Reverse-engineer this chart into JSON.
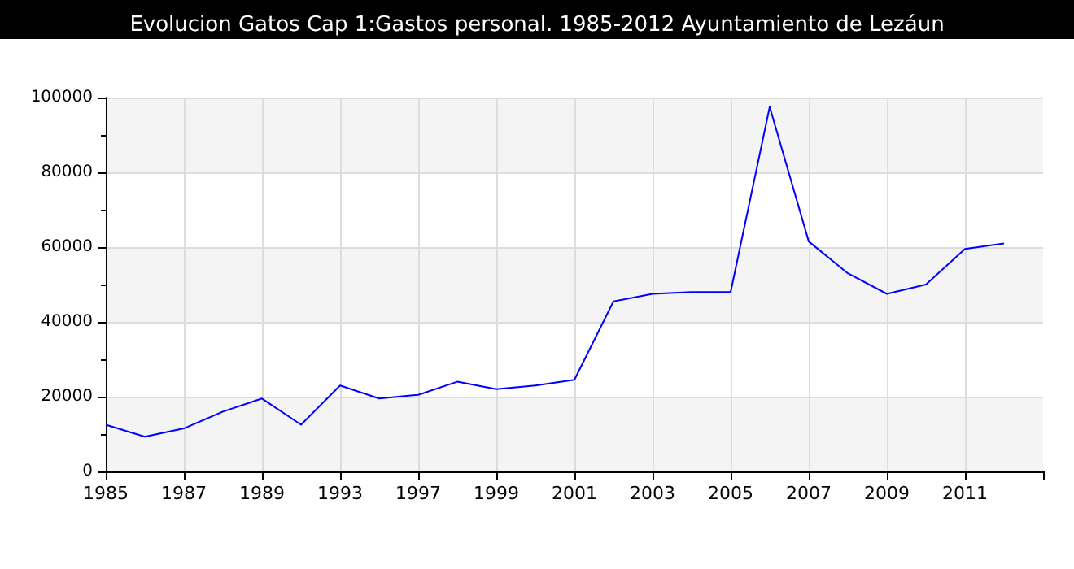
{
  "chart_data": {
    "type": "line",
    "title": "Evolucion Gatos Cap 1:Gastos personal. 1985-2012 Ayuntamiento de Lezáun",
    "categories": [
      "1985",
      null,
      "1987",
      null,
      "1989",
      null,
      "1993",
      null,
      "1997",
      null,
      "1999",
      null,
      "2001",
      null,
      "2003",
      null,
      "2005",
      null,
      "2007",
      null,
      "2009",
      null,
      "2011",
      null,
      null
    ],
    "series": [
      {
        "color": "#0000ff",
        "values": [
          12500,
          9300,
          11500,
          16000,
          19500,
          12500,
          23000,
          19500,
          20500,
          24000,
          22000,
          23000,
          24500,
          45500,
          47500,
          48000,
          48000,
          97500,
          61500,
          53000,
          47500,
          50000,
          59500,
          61000,
          null
        ]
      }
    ],
    "ylim": [
      0,
      100000
    ],
    "yticks": [
      0,
      20000,
      40000,
      60000,
      80000,
      100000
    ],
    "grid": true,
    "marker": "none",
    "line_style": "solid"
  }
}
